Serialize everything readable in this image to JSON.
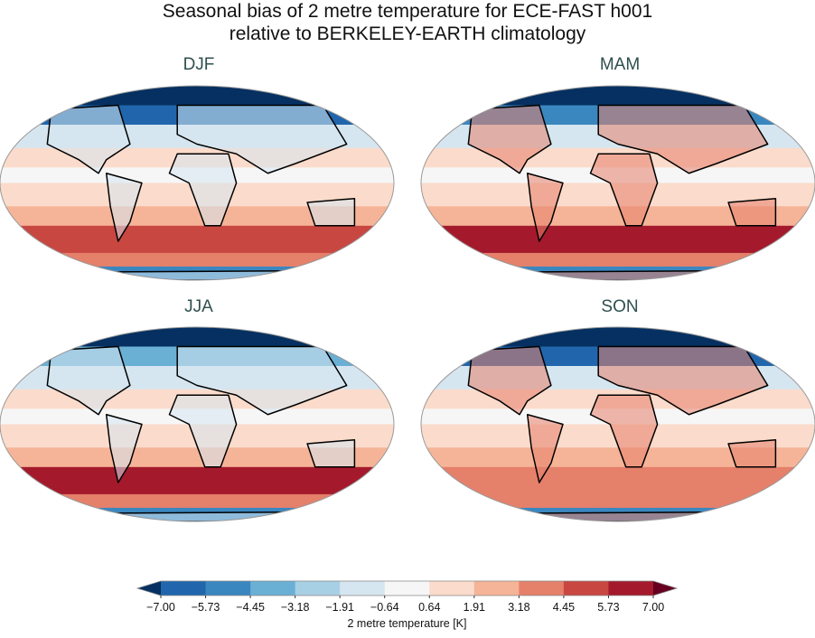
{
  "title_line1": "Seasonal bias of 2 metre temperature for ECE-FAST h001",
  "title_line2": "relative to BERKELEY-EARTH climatology",
  "panels": [
    {
      "label": "DJF",
      "north": "#2166ac",
      "south": "#c94741"
    },
    {
      "label": "MAM",
      "north": "#3a87c0",
      "south": "#a41a2c"
    },
    {
      "label": "JJA",
      "north": "#6aafd4",
      "south": "#a41a2c"
    },
    {
      "label": "SON",
      "north": "#2166ac",
      "south": "#e5806b"
    }
  ],
  "colorbar": {
    "label": "2 metre temperature [K]",
    "ticks": [
      "−7.00",
      "−5.73",
      "−4.45",
      "−3.18",
      "−1.91",
      "−0.64",
      "0.64",
      "1.91",
      "3.18",
      "4.45",
      "5.73",
      "7.00"
    ],
    "colors": [
      "#2166ac",
      "#3a87c0",
      "#6aafd4",
      "#a8d0e4",
      "#d6e6f0",
      "#f6f6f6",
      "#fbdbcb",
      "#f5b497",
      "#e5806b",
      "#c94741",
      "#a41a2c"
    ],
    "under_color": "#053061",
    "over_color": "#67001f",
    "extend": "both"
  }
}
